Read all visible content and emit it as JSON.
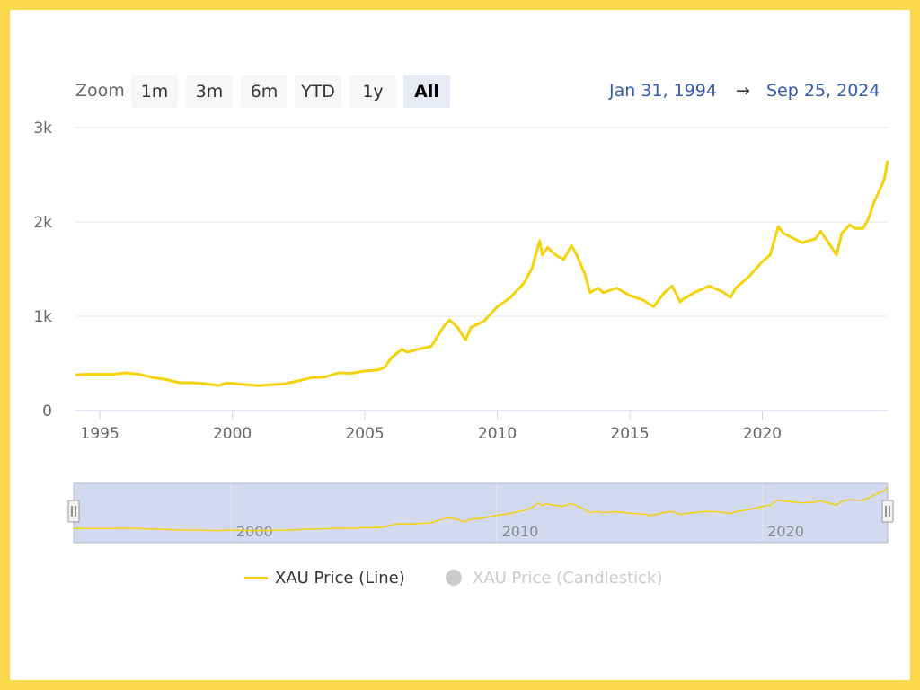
{
  "colors": {
    "frame": "#FCD94A",
    "series": "#F5D20A",
    "navigator_mask": "#CDD6EE",
    "selected_button": "#E6EBF5",
    "date_text": "#335CAD",
    "legend_hidden": "#CCCCCC"
  },
  "toolbar": {
    "zoom_label": "Zoom",
    "buttons": [
      "1m",
      "3m",
      "6m",
      "YTD",
      "1y",
      "All"
    ],
    "active": "All"
  },
  "range": {
    "from": "Jan 31, 1994",
    "arrow": "→",
    "to": "Sep 25, 2024"
  },
  "legend": {
    "line_label": "XAU Price (Line)",
    "candlestick_label": "XAU Price (Candlestick)"
  },
  "navigator": {
    "year_labels": [
      "2000",
      "2010",
      "2020"
    ]
  },
  "chart_data": {
    "type": "line",
    "title": "",
    "xlabel": "",
    "ylabel": "",
    "xlim": [
      1994.08,
      2024.73
    ],
    "ylim": [
      0,
      3000
    ],
    "y_ticks": [
      0,
      1000,
      2000,
      3000
    ],
    "y_tick_labels": [
      "0",
      "1k",
      "2k",
      "3k"
    ],
    "x_ticks": [
      1995,
      2000,
      2005,
      2010,
      2015,
      2020
    ],
    "x_tick_labels": [
      "1995",
      "2000",
      "2005",
      "2010",
      "2015",
      "2020"
    ],
    "legend_position": "bottom-center",
    "series": [
      {
        "name": "XAU Price (Line)",
        "x": [
          1994.08,
          1994.5,
          1995.0,
          1995.5,
          1996.0,
          1996.5,
          1997.0,
          1997.5,
          1998.0,
          1998.5,
          1999.0,
          1999.5,
          1999.75,
          2000.0,
          2000.5,
          2001.0,
          2001.25,
          2001.5,
          2002.0,
          2002.5,
          2003.0,
          2003.5,
          2004.0,
          2004.5,
          2005.0,
          2005.5,
          2005.75,
          2006.0,
          2006.4,
          2006.6,
          2007.0,
          2007.5,
          2008.0,
          2008.2,
          2008.5,
          2008.8,
          2009.0,
          2009.5,
          2010.0,
          2010.5,
          2011.0,
          2011.3,
          2011.6,
          2011.7,
          2011.9,
          2012.2,
          2012.5,
          2012.8,
          2013.0,
          2013.3,
          2013.5,
          2013.8,
          2014.0,
          2014.5,
          2015.0,
          2015.5,
          2015.9,
          2016.3,
          2016.6,
          2016.9,
          2017.0,
          2017.5,
          2018.0,
          2018.5,
          2018.8,
          2019.0,
          2019.5,
          2020.0,
          2020.3,
          2020.6,
          2020.8,
          2021.0,
          2021.5,
          2022.0,
          2022.2,
          2022.5,
          2022.8,
          2023.0,
          2023.3,
          2023.5,
          2023.8,
          2024.0,
          2024.2,
          2024.4,
          2024.6,
          2024.73
        ],
        "values": [
          380,
          385,
          385,
          385,
          400,
          385,
          350,
          330,
          295,
          295,
          285,
          265,
          290,
          290,
          275,
          265,
          270,
          275,
          285,
          315,
          350,
          355,
          400,
          395,
          420,
          430,
          460,
          560,
          650,
          620,
          650,
          680,
          900,
          960,
          880,
          750,
          880,
          950,
          1100,
          1200,
          1350,
          1500,
          1800,
          1650,
          1730,
          1650,
          1600,
          1750,
          1650,
          1450,
          1250,
          1300,
          1250,
          1300,
          1220,
          1170,
          1100,
          1250,
          1320,
          1150,
          1180,
          1260,
          1320,
          1260,
          1200,
          1300,
          1420,
          1580,
          1650,
          1950,
          1880,
          1850,
          1780,
          1820,
          1900,
          1780,
          1650,
          1880,
          1970,
          1930,
          1930,
          2030,
          2200,
          2320,
          2450,
          2650
        ]
      }
    ]
  }
}
